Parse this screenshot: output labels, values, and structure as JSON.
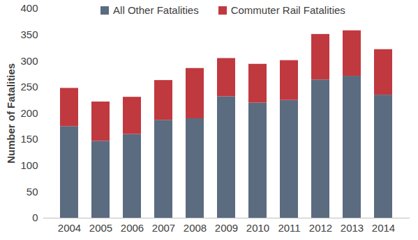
{
  "chart_data": {
    "type": "bar",
    "stacked": true,
    "ylabel": "Number of Fatalities",
    "categories": [
      "2004",
      "2005",
      "2006",
      "2007",
      "2008",
      "2009",
      "2010",
      "2011",
      "2012",
      "2013",
      "2014"
    ],
    "series": [
      {
        "name": "All Other Fatalities",
        "color": "#5b6b80",
        "values": [
          175,
          147,
          160,
          187,
          190,
          232,
          220,
          225,
          264,
          271,
          235
        ]
      },
      {
        "name": "Commuter Rail Fatalities",
        "color": "#c0393f",
        "values": [
          73,
          75,
          71,
          76,
          96,
          73,
          74,
          76,
          87,
          87,
          87
        ]
      }
    ],
    "ylim": [
      0,
      400
    ],
    "yticks": [
      0,
      50,
      100,
      150,
      200,
      250,
      300,
      350,
      400
    ],
    "grid": false,
    "legend": "top"
  }
}
